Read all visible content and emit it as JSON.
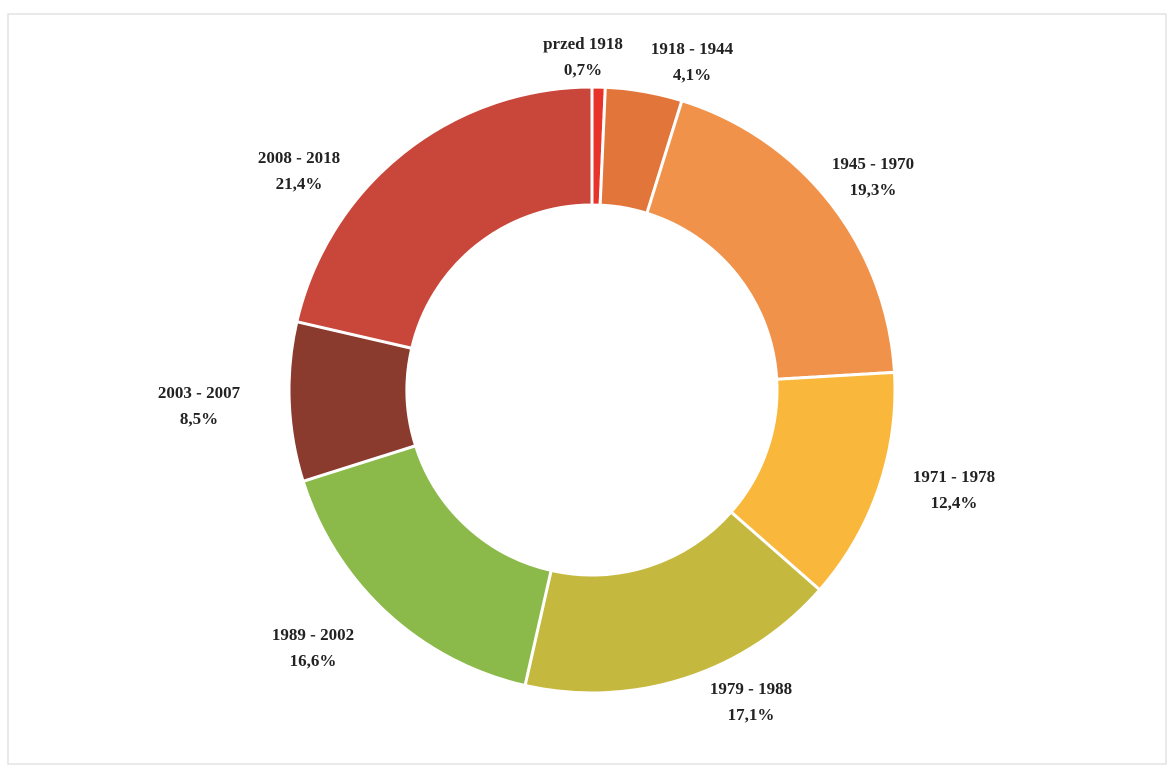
{
  "chart_data": {
    "type": "donut",
    "categories": [
      "przed 1918",
      "1918 - 1944",
      "1945 - 1970",
      "1971 - 1978",
      "1979 - 1988",
      "1989 - 2002",
      "2003 - 2007",
      "2008 - 2018"
    ],
    "values": [
      0.7,
      4.1,
      19.3,
      12.4,
      17.1,
      16.6,
      8.5,
      21.4
    ],
    "value_labels": [
      "0,7%",
      "4,1%",
      "19,3%",
      "12,4%",
      "17,1%",
      "16,6%",
      "8,5%",
      "21,4%"
    ],
    "colors": [
      "#e8332a",
      "#e2763a",
      "#f0924a",
      "#f9b73c",
      "#c5b83f",
      "#8bba4a",
      "#8b3a2e",
      "#c9463b"
    ]
  }
}
